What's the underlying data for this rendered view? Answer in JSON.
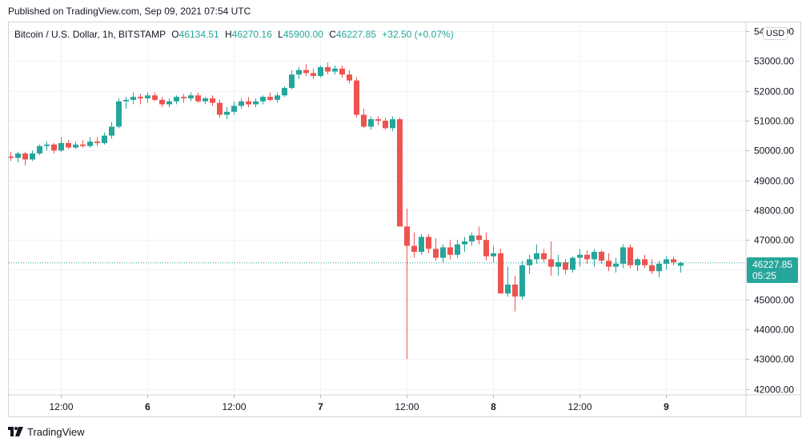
{
  "header": {
    "published": "Published on TradingView.com, Sep 09, 2021 07:54 UTC"
  },
  "legend": {
    "symbol": "Bitcoin / U.S. Dollar, 1h, BITSTAMP",
    "o_label": "O",
    "o_value": "46134.51",
    "h_label": "H",
    "h_value": "46270.16",
    "l_label": "L",
    "l_value": "45900.00",
    "c_label": "C",
    "c_value": "46227.85",
    "change": "+32.50 (+0.07%)"
  },
  "currency": "USD",
  "last_price": {
    "value": "46227.85",
    "countdown": "05:25"
  },
  "footer": {
    "brand": "TradingView"
  },
  "colors": {
    "up": "#26a69a",
    "down": "#ef5350",
    "grid": "#f0f3fa",
    "text": "#131722"
  },
  "chart_data": {
    "type": "candlestick",
    "y_ticks": [
      "42000.00",
      "43000.00",
      "44000.00",
      "45000.00",
      "46000.00",
      "47000.00",
      "48000.00",
      "49000.00",
      "50000.00",
      "51000.00",
      "52000.00",
      "53000.00",
      "54000.00"
    ],
    "x_ticks": [
      {
        "label": "12:00",
        "index": 7,
        "bold": false
      },
      {
        "label": "6",
        "index": 19,
        "bold": true
      },
      {
        "label": "12:00",
        "index": 31,
        "bold": false
      },
      {
        "label": "7",
        "index": 43,
        "bold": true
      },
      {
        "label": "12:00",
        "index": 55,
        "bold": false
      },
      {
        "label": "8",
        "index": 67,
        "bold": true
      },
      {
        "label": "12:00",
        "index": 79,
        "bold": false
      },
      {
        "label": "9",
        "index": 91,
        "bold": true
      }
    ],
    "ylim": [
      41800,
      54300
    ],
    "last_price": 46227.85,
    "ohlc": [
      [
        49800,
        49950,
        49650,
        49750
      ],
      [
        49750,
        49950,
        49600,
        49900
      ],
      [
        49900,
        49950,
        49500,
        49700
      ],
      [
        49700,
        50000,
        49650,
        49900
      ],
      [
        49900,
        50200,
        49850,
        50150
      ],
      [
        50150,
        50300,
        50000,
        50200
      ],
      [
        50200,
        50250,
        49900,
        50000
      ],
      [
        50000,
        50450,
        49950,
        50250
      ],
      [
        50250,
        50350,
        50050,
        50100
      ],
      [
        50100,
        50300,
        50050,
        50200
      ],
      [
        50200,
        50350,
        50100,
        50150
      ],
      [
        50150,
        50450,
        50100,
        50300
      ],
      [
        50300,
        50450,
        50150,
        50250
      ],
      [
        50250,
        50600,
        50200,
        50500
      ],
      [
        50500,
        50950,
        50400,
        50800
      ],
      [
        50800,
        51750,
        50750,
        51650
      ],
      [
        51650,
        51800,
        51400,
        51700
      ],
      [
        51700,
        51950,
        51550,
        51800
      ],
      [
        51800,
        51900,
        51550,
        51750
      ],
      [
        51750,
        51950,
        51600,
        51850
      ],
      [
        51850,
        51950,
        51650,
        51700
      ],
      [
        51700,
        51800,
        51450,
        51550
      ],
      [
        51550,
        51750,
        51450,
        51650
      ],
      [
        51650,
        51850,
        51550,
        51800
      ],
      [
        51800,
        51900,
        51600,
        51750
      ],
      [
        51750,
        51950,
        51650,
        51850
      ],
      [
        51850,
        51950,
        51600,
        51650
      ],
      [
        51650,
        51800,
        51550,
        51750
      ],
      [
        51750,
        51850,
        51500,
        51600
      ],
      [
        51600,
        51700,
        51100,
        51200
      ],
      [
        51200,
        51450,
        51050,
        51300
      ],
      [
        51300,
        51650,
        51200,
        51500
      ],
      [
        51500,
        51750,
        51400,
        51650
      ],
      [
        51650,
        51800,
        51450,
        51550
      ],
      [
        51550,
        51750,
        51450,
        51650
      ],
      [
        51650,
        51850,
        51550,
        51800
      ],
      [
        51800,
        51950,
        51650,
        51700
      ],
      [
        51700,
        51950,
        51600,
        51850
      ],
      [
        51850,
        52150,
        51800,
        52100
      ],
      [
        52100,
        52700,
        52050,
        52550
      ],
      [
        52550,
        52800,
        52400,
        52700
      ],
      [
        52700,
        52900,
        52500,
        52600
      ],
      [
        52600,
        52750,
        52400,
        52500
      ],
      [
        52500,
        52850,
        52450,
        52800
      ],
      [
        52800,
        52950,
        52550,
        52650
      ],
      [
        52650,
        52850,
        52550,
        52750
      ],
      [
        52750,
        52850,
        52450,
        52550
      ],
      [
        52550,
        52700,
        52250,
        52350
      ],
      [
        52350,
        52450,
        51100,
        51200
      ],
      [
        51200,
        51400,
        50750,
        50800
      ],
      [
        50800,
        51150,
        50700,
        51050
      ],
      [
        51050,
        51150,
        50850,
        51000
      ],
      [
        51000,
        51100,
        50700,
        50750
      ],
      [
        50750,
        51150,
        50650,
        51050
      ],
      [
        51050,
        51100,
        47500,
        47450
      ],
      [
        47450,
        48050,
        43000,
        46800
      ],
      [
        46800,
        47250,
        46400,
        46600
      ],
      [
        46600,
        47200,
        46500,
        47100
      ],
      [
        47100,
        47200,
        46550,
        46700
      ],
      [
        46700,
        47050,
        46300,
        46400
      ],
      [
        46400,
        46850,
        46250,
        46750
      ],
      [
        46750,
        47000,
        46350,
        46500
      ],
      [
        46500,
        47000,
        46400,
        46850
      ],
      [
        46850,
        47100,
        46600,
        46950
      ],
      [
        46950,
        47250,
        46800,
        47150
      ],
      [
        47150,
        47450,
        46850,
        47000
      ],
      [
        47000,
        47250,
        46300,
        46450
      ],
      [
        46450,
        46800,
        46250,
        46550
      ],
      [
        46550,
        46700,
        45300,
        45200
      ],
      [
        45200,
        46100,
        45100,
        45500
      ],
      [
        45500,
        45800,
        44600,
        45100
      ],
      [
        45100,
        46300,
        45000,
        46150
      ],
      [
        46150,
        46500,
        45850,
        46350
      ],
      [
        46350,
        46850,
        46200,
        46550
      ],
      [
        46550,
        46700,
        46250,
        46350
      ],
      [
        46350,
        46950,
        45800,
        46100
      ],
      [
        46100,
        46500,
        45800,
        46250
      ],
      [
        46250,
        46350,
        45850,
        46000
      ],
      [
        46000,
        46450,
        45900,
        46400
      ],
      [
        46400,
        46700,
        46100,
        46500
      ],
      [
        46500,
        46650,
        46200,
        46350
      ],
      [
        46350,
        46700,
        46100,
        46600
      ],
      [
        46600,
        46650,
        46200,
        46300
      ],
      [
        46300,
        46550,
        45950,
        46100
      ],
      [
        46100,
        46400,
        45900,
        46200
      ],
      [
        46200,
        46850,
        46050,
        46750
      ],
      [
        46750,
        46850,
        46050,
        46150
      ],
      [
        46150,
        46400,
        45950,
        46350
      ],
      [
        46350,
        46500,
        46050,
        46150
      ],
      [
        46150,
        46350,
        45850,
        45950
      ],
      [
        45950,
        46300,
        45750,
        46200
      ],
      [
        46200,
        46450,
        46000,
        46350
      ],
      [
        46350,
        46450,
        46150,
        46250
      ],
      [
        46134.51,
        46270.16,
        45900,
        46227.85
      ]
    ]
  }
}
